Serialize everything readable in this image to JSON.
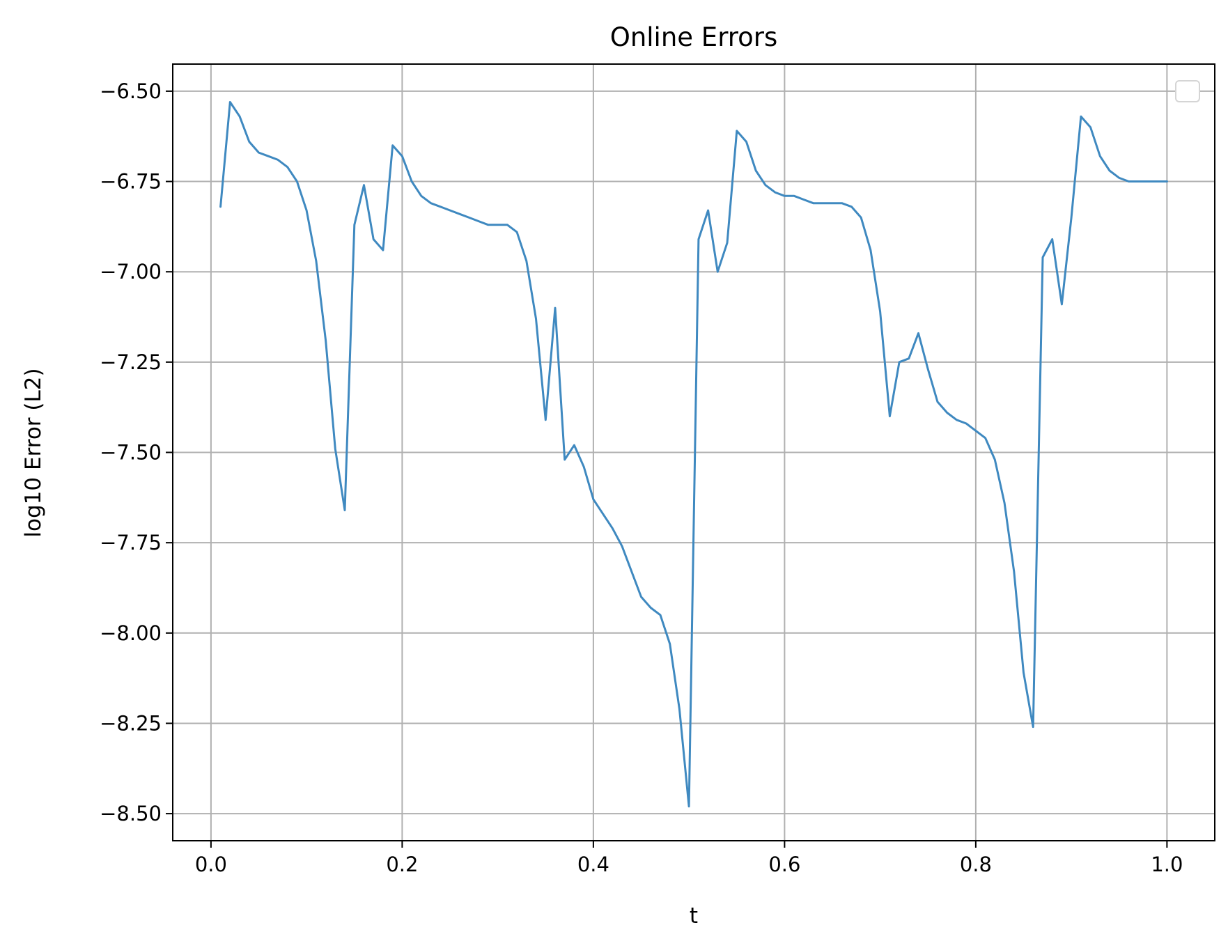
{
  "chart_data": {
    "type": "line",
    "title": "Online Errors",
    "xlabel": "t",
    "ylabel": "log10 Error (L2)",
    "xlim": [
      -0.04,
      1.05
    ],
    "ylim": [
      -8.575,
      -6.425
    ],
    "xticks": [
      0.0,
      0.2,
      0.4,
      0.6,
      0.8,
      1.0
    ],
    "xtick_labels": [
      "0.0",
      "0.2",
      "0.4",
      "0.6",
      "0.8",
      "1.0"
    ],
    "yticks": [
      -6.5,
      -6.75,
      -7.0,
      -7.25,
      -7.5,
      -7.75,
      -8.0,
      -8.25,
      -8.5
    ],
    "ytick_labels": [
      "−6.50",
      "−6.75",
      "−7.00",
      "−7.25",
      "−7.50",
      "−7.75",
      "−8.00",
      "−8.25",
      "−8.50"
    ],
    "grid": true,
    "legend": "top-right",
    "legend_entries": [],
    "line_color": "#3f89c0",
    "series": [
      {
        "x": [
          0.01,
          0.02,
          0.03,
          0.04,
          0.05,
          0.06,
          0.07,
          0.08,
          0.09,
          0.1,
          0.11,
          0.12,
          0.13,
          0.14,
          0.15,
          0.16,
          0.17,
          0.18,
          0.19,
          0.2,
          0.21,
          0.22,
          0.23,
          0.24,
          0.25,
          0.26,
          0.27,
          0.28,
          0.29,
          0.3,
          0.31,
          0.32,
          0.33,
          0.34,
          0.35,
          0.36,
          0.37,
          0.38,
          0.39,
          0.4,
          0.41,
          0.42,
          0.43,
          0.44,
          0.45,
          0.46,
          0.47,
          0.48,
          0.49,
          0.5,
          0.51,
          0.52,
          0.53,
          0.54,
          0.55,
          0.56,
          0.57,
          0.58,
          0.59,
          0.6,
          0.61,
          0.62,
          0.63,
          0.64,
          0.65,
          0.66,
          0.67,
          0.68,
          0.69,
          0.7,
          0.71,
          0.72,
          0.73,
          0.74,
          0.75,
          0.76,
          0.77,
          0.78,
          0.79,
          0.8,
          0.81,
          0.82,
          0.83,
          0.84,
          0.85,
          0.86,
          0.87,
          0.88,
          0.89,
          0.9,
          0.91,
          0.92,
          0.93,
          0.94,
          0.95,
          0.96,
          0.97,
          0.98,
          0.99,
          1.0
        ],
        "y": [
          -6.82,
          -6.53,
          -6.57,
          -6.64,
          -6.67,
          -6.68,
          -6.69,
          -6.71,
          -6.75,
          -6.83,
          -6.97,
          -7.19,
          -7.49,
          -7.66,
          -6.87,
          -6.76,
          -6.91,
          -6.94,
          -6.65,
          -6.68,
          -6.75,
          -6.79,
          -6.81,
          -6.82,
          -6.83,
          -6.84,
          -6.85,
          -6.86,
          -6.87,
          -6.87,
          -6.87,
          -6.89,
          -6.97,
          -7.13,
          -7.41,
          -7.1,
          -7.52,
          -7.48,
          -7.54,
          -7.63,
          -7.67,
          -7.71,
          -7.76,
          -7.83,
          -7.9,
          -7.93,
          -7.95,
          -8.03,
          -8.21,
          -8.48,
          -6.91,
          -6.83,
          -7.0,
          -6.92,
          -6.61,
          -6.64,
          -6.72,
          -6.76,
          -6.78,
          -6.79,
          -6.79,
          -6.8,
          -6.81,
          -6.81,
          -6.81,
          -6.81,
          -6.82,
          -6.85,
          -6.94,
          -7.11,
          -7.4,
          -7.25,
          -7.24,
          -7.17,
          -7.27,
          -7.36,
          -7.39,
          -7.41,
          -7.42,
          -7.44,
          -7.46,
          -7.52,
          -7.64,
          -7.83,
          -8.11,
          -8.26,
          -6.96,
          -6.91,
          -7.09,
          -6.85,
          -6.57,
          -6.6,
          -6.68,
          -6.72,
          -6.74,
          -6.75,
          -6.75,
          -6.75,
          -6.75,
          -6.75
        ]
      }
    ]
  }
}
